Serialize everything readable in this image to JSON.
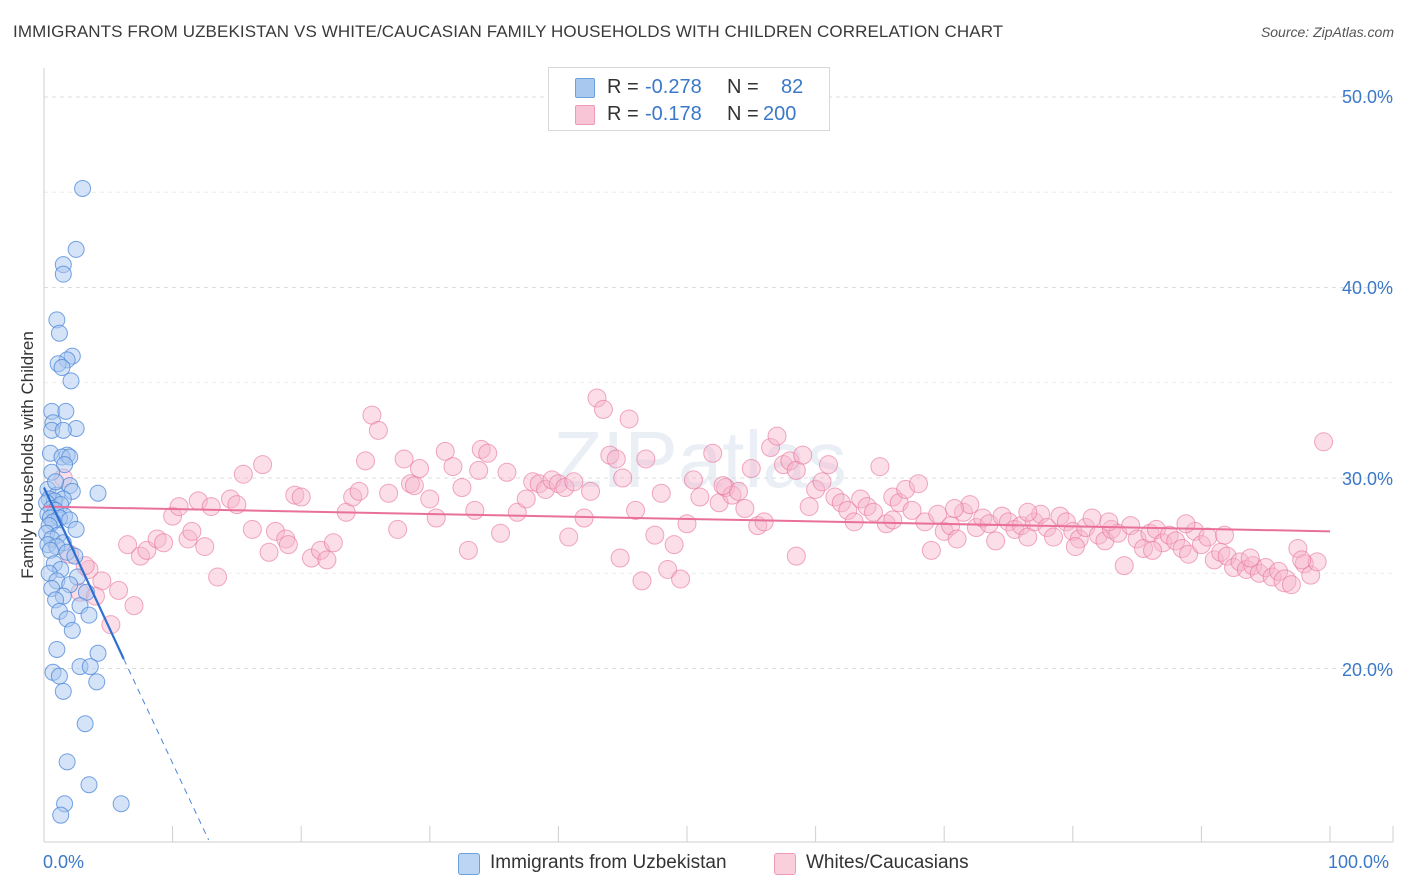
{
  "title": "IMMIGRANTS FROM UZBEKISTAN VS WHITE/CAUCASIAN FAMILY HOUSEHOLDS WITH CHILDREN CORRELATION CHART",
  "source": "Source: ZipAtlas.com",
  "watermark": "ZIPatlas",
  "legend_top": {
    "rows": [
      {
        "r_label": "R =",
        "r_value": "-0.278",
        "n_label": "N =",
        "n_value": "82",
        "color": "#a9c8f0"
      },
      {
        "r_label": "R =",
        "r_value": "-0.178",
        "n_label": "N =",
        "n_value": "200",
        "color": "#f7b6cb"
      }
    ]
  },
  "legend_bottom": {
    "items": [
      {
        "label": "Immigrants from Uzbekistan",
        "color": "#a9c8f0"
      },
      {
        "label": "Whites/Caucasians",
        "color": "#f7b6cb"
      }
    ]
  },
  "axes": {
    "y_label": "Family Households with Children",
    "y_ticks": [
      {
        "value": 50,
        "label": "50.0%"
      },
      {
        "value": 40,
        "label": "40.0%"
      },
      {
        "value": 30,
        "label": "30.0%"
      },
      {
        "value": 20,
        "label": "20.0%"
      }
    ],
    "x_ticks": [
      {
        "value": 0,
        "label": "0.0%"
      },
      {
        "value": 100,
        "label": "100.0%"
      }
    ]
  },
  "chart_data": {
    "type": "scatter",
    "title": "IMMIGRANTS FROM UZBEKISTAN VS WHITE/CAUCASIAN FAMILY HOUSEHOLDS WITH CHILDREN CORRELATION CHART",
    "xlabel": "",
    "ylabel": "Family Households with Children",
    "xlim": [
      0,
      100
    ],
    "ylim": [
      11,
      51
    ],
    "grid": true,
    "series": [
      {
        "name": "Immigrants from Uzbekistan",
        "color": "#4a86d8",
        "fill": "#a9c8f0",
        "r": -0.278,
        "n": 82,
        "trend": {
          "x0": 0,
          "y0": 29.5,
          "x1": 6.2,
          "y1": 20.5,
          "dash_to_x": 12.8,
          "dash_to_y": 11.0
        },
        "points": [
          [
            3.0,
            45.2
          ],
          [
            2.5,
            42.0
          ],
          [
            1.5,
            41.2
          ],
          [
            1.5,
            40.7
          ],
          [
            1.0,
            38.3
          ],
          [
            1.2,
            37.6
          ],
          [
            2.2,
            36.4
          ],
          [
            1.8,
            36.2
          ],
          [
            1.1,
            36.0
          ],
          [
            1.4,
            35.8
          ],
          [
            2.1,
            35.1
          ],
          [
            0.6,
            33.5
          ],
          [
            1.7,
            33.5
          ],
          [
            0.7,
            32.9
          ],
          [
            2.5,
            32.6
          ],
          [
            0.6,
            32.5
          ],
          [
            1.5,
            32.5
          ],
          [
            0.5,
            31.3
          ],
          [
            1.8,
            31.2
          ],
          [
            1.4,
            31.1
          ],
          [
            2.0,
            31.1
          ],
          [
            1.6,
            30.7
          ],
          [
            0.6,
            30.3
          ],
          [
            2.0,
            29.6
          ],
          [
            0.3,
            29.4
          ],
          [
            2.2,
            29.3
          ],
          [
            4.2,
            29.2
          ],
          [
            1.0,
            29.1
          ],
          [
            0.4,
            28.9
          ],
          [
            1.5,
            28.9
          ],
          [
            0.8,
            28.8
          ],
          [
            0.2,
            28.7
          ],
          [
            1.3,
            28.6
          ],
          [
            0.6,
            28.4
          ],
          [
            0.9,
            28.3
          ],
          [
            0.3,
            28.1
          ],
          [
            1.6,
            28.0
          ],
          [
            0.5,
            27.9
          ],
          [
            1.2,
            27.9
          ],
          [
            2.0,
            27.8
          ],
          [
            0.7,
            27.7
          ],
          [
            0.4,
            27.5
          ],
          [
            2.5,
            27.3
          ],
          [
            0.2,
            27.1
          ],
          [
            1.1,
            27.0
          ],
          [
            0.6,
            26.8
          ],
          [
            1.5,
            26.6
          ],
          [
            0.3,
            26.5
          ],
          [
            1.0,
            26.4
          ],
          [
            0.5,
            26.2
          ],
          [
            1.8,
            26.1
          ],
          [
            2.4,
            25.9
          ],
          [
            0.8,
            25.5
          ],
          [
            1.3,
            25.2
          ],
          [
            0.4,
            25.0
          ],
          [
            2.6,
            24.8
          ],
          [
            1.0,
            24.6
          ],
          [
            2.0,
            24.4
          ],
          [
            0.6,
            24.2
          ],
          [
            3.3,
            24.0
          ],
          [
            1.5,
            23.8
          ],
          [
            0.9,
            23.6
          ],
          [
            2.8,
            23.3
          ],
          [
            1.2,
            23.0
          ],
          [
            3.5,
            22.8
          ],
          [
            1.8,
            22.6
          ],
          [
            2.2,
            22.0
          ],
          [
            1.0,
            21.0
          ],
          [
            4.2,
            20.8
          ],
          [
            2.8,
            20.1
          ],
          [
            3.6,
            20.1
          ],
          [
            0.7,
            19.8
          ],
          [
            1.2,
            19.6
          ],
          [
            4.1,
            19.3
          ],
          [
            1.5,
            18.8
          ],
          [
            3.2,
            17.1
          ],
          [
            1.8,
            15.1
          ],
          [
            3.5,
            13.9
          ],
          [
            1.6,
            12.9
          ],
          [
            6.0,
            12.9
          ],
          [
            1.3,
            12.3
          ],
          [
            0.9,
            29.8
          ]
        ]
      },
      {
        "name": "Whites/Caucasians",
        "color": "#e87197",
        "fill": "#f7b6cb",
        "r": -0.178,
        "n": 200,
        "trend": {
          "x0": 0,
          "y0": 28.5,
          "x1": 100,
          "y1": 27.2
        },
        "points": [
          [
            1.5,
            30.0
          ],
          [
            2.0,
            26.0
          ],
          [
            2.8,
            24.0
          ],
          [
            3.5,
            25.2
          ],
          [
            4.5,
            24.6
          ],
          [
            5.2,
            22.3
          ],
          [
            6.5,
            26.5
          ],
          [
            7.0,
            23.3
          ],
          [
            7.5,
            25.9
          ],
          [
            8.0,
            26.2
          ],
          [
            8.8,
            26.8
          ],
          [
            9.3,
            26.6
          ],
          [
            10.0,
            28.0
          ],
          [
            10.5,
            28.5
          ],
          [
            11.2,
            26.8
          ],
          [
            11.5,
            27.2
          ],
          [
            12.0,
            28.8
          ],
          [
            13.0,
            28.5
          ],
          [
            13.5,
            24.8
          ],
          [
            14.5,
            28.9
          ],
          [
            15.0,
            28.6
          ],
          [
            15.5,
            30.2
          ],
          [
            16.2,
            27.3
          ],
          [
            17.0,
            30.7
          ],
          [
            17.5,
            26.1
          ],
          [
            18.0,
            27.2
          ],
          [
            18.8,
            26.8
          ],
          [
            19.5,
            29.1
          ],
          [
            20.0,
            29.0
          ],
          [
            20.8,
            25.8
          ],
          [
            21.5,
            26.2
          ],
          [
            22.0,
            25.7
          ],
          [
            22.5,
            26.6
          ],
          [
            23.5,
            28.2
          ],
          [
            24.0,
            29.0
          ],
          [
            24.5,
            29.3
          ],
          [
            25.0,
            30.9
          ],
          [
            25.5,
            33.3
          ],
          [
            26.0,
            32.5
          ],
          [
            26.8,
            29.2
          ],
          [
            27.5,
            27.3
          ],
          [
            28.0,
            31.0
          ],
          [
            28.5,
            29.7
          ],
          [
            29.2,
            30.5
          ],
          [
            30.0,
            28.9
          ],
          [
            30.5,
            27.9
          ],
          [
            31.2,
            31.4
          ],
          [
            31.8,
            30.6
          ],
          [
            32.5,
            29.5
          ],
          [
            33.0,
            26.2
          ],
          [
            33.5,
            28.3
          ],
          [
            34.0,
            31.5
          ],
          [
            34.5,
            31.3
          ],
          [
            35.5,
            27.1
          ],
          [
            36.0,
            30.3
          ],
          [
            36.8,
            28.2
          ],
          [
            37.5,
            28.9
          ],
          [
            38.0,
            29.8
          ],
          [
            38.5,
            29.7
          ],
          [
            39.0,
            29.4
          ],
          [
            39.5,
            29.9
          ],
          [
            40.0,
            29.7
          ],
          [
            40.5,
            29.5
          ],
          [
            41.2,
            29.8
          ],
          [
            42.0,
            27.9
          ],
          [
            42.5,
            29.3
          ],
          [
            43.0,
            34.2
          ],
          [
            43.5,
            33.6
          ],
          [
            44.0,
            31.2
          ],
          [
            44.5,
            31.0
          ],
          [
            45.0,
            30.0
          ],
          [
            45.5,
            33.1
          ],
          [
            46.0,
            28.3
          ],
          [
            46.8,
            31.0
          ],
          [
            47.5,
            27.0
          ],
          [
            48.0,
            29.2
          ],
          [
            48.5,
            25.2
          ],
          [
            49.0,
            26.5
          ],
          [
            49.5,
            24.7
          ],
          [
            50.0,
            27.6
          ],
          [
            50.5,
            29.9
          ],
          [
            51.0,
            29.0
          ],
          [
            52.0,
            31.3
          ],
          [
            52.5,
            28.7
          ],
          [
            53.0,
            29.5
          ],
          [
            53.5,
            29.1
          ],
          [
            54.0,
            29.3
          ],
          [
            54.5,
            28.4
          ],
          [
            55.0,
            30.5
          ],
          [
            55.5,
            27.5
          ],
          [
            56.0,
            27.7
          ],
          [
            56.5,
            31.6
          ],
          [
            57.0,
            32.2
          ],
          [
            57.5,
            30.7
          ],
          [
            58.0,
            30.9
          ],
          [
            58.5,
            30.4
          ],
          [
            59.0,
            31.2
          ],
          [
            59.5,
            28.5
          ],
          [
            60.0,
            29.4
          ],
          [
            60.5,
            29.8
          ],
          [
            61.0,
            30.7
          ],
          [
            61.5,
            29.0
          ],
          [
            62.0,
            28.7
          ],
          [
            62.5,
            28.3
          ],
          [
            63.0,
            27.7
          ],
          [
            63.5,
            28.9
          ],
          [
            64.0,
            28.5
          ],
          [
            64.5,
            28.2
          ],
          [
            65.0,
            30.6
          ],
          [
            65.5,
            27.6
          ],
          [
            66.0,
            29.0
          ],
          [
            66.5,
            28.7
          ],
          [
            67.0,
            29.4
          ],
          [
            67.5,
            28.3
          ],
          [
            68.0,
            29.7
          ],
          [
            68.5,
            27.7
          ],
          [
            69.0,
            26.2
          ],
          [
            69.5,
            28.1
          ],
          [
            70.0,
            27.2
          ],
          [
            70.5,
            27.5
          ],
          [
            71.0,
            26.8
          ],
          [
            71.5,
            28.2
          ],
          [
            72.0,
            28.6
          ],
          [
            72.5,
            27.4
          ],
          [
            73.0,
            27.9
          ],
          [
            73.5,
            27.6
          ],
          [
            74.0,
            26.7
          ],
          [
            74.5,
            28.0
          ],
          [
            75.0,
            27.7
          ],
          [
            75.5,
            27.3
          ],
          [
            76.0,
            27.5
          ],
          [
            76.5,
            26.9
          ],
          [
            77.0,
            27.7
          ],
          [
            77.5,
            28.1
          ],
          [
            78.0,
            27.4
          ],
          [
            78.5,
            26.9
          ],
          [
            79.0,
            28.0
          ],
          [
            79.5,
            27.7
          ],
          [
            80.0,
            27.2
          ],
          [
            80.5,
            26.8
          ],
          [
            81.0,
            27.4
          ],
          [
            81.5,
            27.9
          ],
          [
            82.0,
            27.0
          ],
          [
            82.5,
            26.7
          ],
          [
            83.0,
            27.3
          ],
          [
            83.5,
            27.1
          ],
          [
            84.0,
            25.4
          ],
          [
            84.5,
            27.5
          ],
          [
            85.0,
            26.8
          ],
          [
            85.5,
            26.3
          ],
          [
            86.0,
            27.1
          ],
          [
            86.5,
            27.3
          ],
          [
            87.0,
            26.6
          ],
          [
            87.5,
            27.0
          ],
          [
            88.0,
            26.7
          ],
          [
            88.5,
            26.3
          ],
          [
            89.0,
            26.0
          ],
          [
            89.5,
            27.2
          ],
          [
            90.0,
            26.5
          ],
          [
            90.5,
            26.9
          ],
          [
            91.0,
            25.7
          ],
          [
            91.5,
            26.1
          ],
          [
            92.0,
            25.9
          ],
          [
            92.5,
            25.3
          ],
          [
            93.0,
            25.6
          ],
          [
            93.5,
            25.2
          ],
          [
            94.0,
            25.4
          ],
          [
            94.5,
            25.0
          ],
          [
            95.0,
            25.3
          ],
          [
            95.5,
            24.8
          ],
          [
            96.0,
            25.1
          ],
          [
            96.5,
            24.6
          ],
          [
            97.0,
            24.4
          ],
          [
            97.5,
            26.3
          ],
          [
            98.0,
            25.5
          ],
          [
            98.5,
            24.9
          ],
          [
            99.0,
            25.6
          ],
          [
            99.5,
            31.9
          ],
          [
            88.8,
            27.6
          ],
          [
            86.2,
            26.2
          ],
          [
            3.2,
            25.4
          ],
          [
            5.8,
            24.1
          ],
          [
            4.0,
            23.8
          ],
          [
            19.0,
            26.5
          ],
          [
            46.5,
            24.6
          ],
          [
            12.5,
            26.4
          ],
          [
            33.8,
            30.4
          ],
          [
            58.5,
            25.9
          ],
          [
            66.0,
            27.8
          ],
          [
            28.8,
            29.6
          ],
          [
            40.8,
            26.9
          ],
          [
            44.8,
            25.8
          ],
          [
            52.8,
            29.6
          ],
          [
            70.8,
            28.4
          ],
          [
            76.5,
            28.2
          ],
          [
            80.2,
            26.4
          ],
          [
            82.8,
            27.7
          ],
          [
            91.8,
            27.0
          ],
          [
            93.8,
            25.8
          ],
          [
            97.8,
            25.7
          ]
        ]
      }
    ]
  }
}
